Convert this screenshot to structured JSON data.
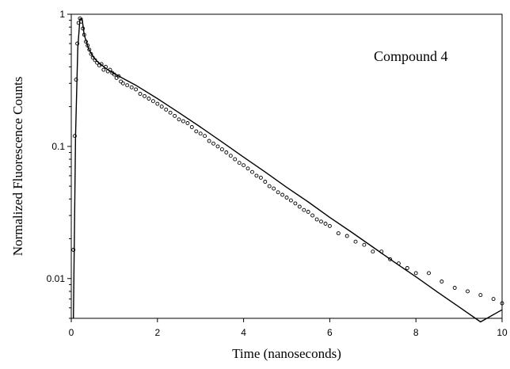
{
  "chart_data": {
    "type": "scatter",
    "title": "",
    "xlabel": "Time (nanoseconds)",
    "ylabel": "Normalized Fluorescence Counts",
    "annotation": "Compound 4",
    "xlim": [
      0,
      10
    ],
    "ylim": [
      0.005,
      1
    ],
    "yscale": "log",
    "grid": false,
    "legend": "none",
    "x_ticks": [
      0,
      2,
      4,
      6,
      8,
      10
    ],
    "x_tick_labels": [
      "0",
      "2",
      "4",
      "6",
      "8",
      "10"
    ],
    "y_ticks": [
      0.01,
      0.1,
      1
    ],
    "y_tick_labels": [
      "0.01",
      "0.1",
      "1"
    ],
    "series": [
      {
        "role": "measured-decay",
        "marker": "open-circle",
        "points": [
          [
            0.05,
            0.0165
          ],
          [
            0.08,
            0.12
          ],
          [
            0.11,
            0.32
          ],
          [
            0.14,
            0.6
          ],
          [
            0.17,
            0.86
          ],
          [
            0.2,
            0.93
          ],
          [
            0.23,
            0.88
          ],
          [
            0.27,
            0.78
          ],
          [
            0.3,
            0.7
          ],
          [
            0.34,
            0.62
          ],
          [
            0.38,
            0.58
          ],
          [
            0.42,
            0.54
          ],
          [
            0.46,
            0.5
          ],
          [
            0.5,
            0.47
          ],
          [
            0.55,
            0.45
          ],
          [
            0.6,
            0.43
          ],
          [
            0.65,
            0.41
          ],
          [
            0.7,
            0.42
          ],
          [
            0.75,
            0.38
          ],
          [
            0.8,
            0.4
          ],
          [
            0.85,
            0.37
          ],
          [
            0.9,
            0.38
          ],
          [
            0.95,
            0.36
          ],
          [
            1.0,
            0.35
          ],
          [
            1.05,
            0.33
          ],
          [
            1.1,
            0.34
          ],
          [
            1.15,
            0.31
          ],
          [
            1.2,
            0.3
          ],
          [
            1.3,
            0.29
          ],
          [
            1.4,
            0.28
          ],
          [
            1.5,
            0.27
          ],
          [
            1.6,
            0.25
          ],
          [
            1.7,
            0.24
          ],
          [
            1.8,
            0.23
          ],
          [
            1.9,
            0.22
          ],
          [
            2.0,
            0.21
          ],
          [
            2.1,
            0.2
          ],
          [
            2.2,
            0.19
          ],
          [
            2.3,
            0.18
          ],
          [
            2.4,
            0.17
          ],
          [
            2.5,
            0.16
          ],
          [
            2.6,
            0.155
          ],
          [
            2.7,
            0.15
          ],
          [
            2.8,
            0.14
          ],
          [
            2.9,
            0.13
          ],
          [
            3.0,
            0.125
          ],
          [
            3.1,
            0.12
          ],
          [
            3.2,
            0.11
          ],
          [
            3.3,
            0.105
          ],
          [
            3.4,
            0.1
          ],
          [
            3.5,
            0.095
          ],
          [
            3.6,
            0.09
          ],
          [
            3.7,
            0.085
          ],
          [
            3.8,
            0.08
          ],
          [
            3.9,
            0.075
          ],
          [
            4.0,
            0.072
          ],
          [
            4.1,
            0.068
          ],
          [
            4.2,
            0.064
          ],
          [
            4.3,
            0.06
          ],
          [
            4.4,
            0.058
          ],
          [
            4.5,
            0.054
          ],
          [
            4.6,
            0.05
          ],
          [
            4.7,
            0.048
          ],
          [
            4.8,
            0.045
          ],
          [
            4.9,
            0.043
          ],
          [
            5.0,
            0.041
          ],
          [
            5.1,
            0.039
          ],
          [
            5.2,
            0.037
          ],
          [
            5.3,
            0.035
          ],
          [
            5.4,
            0.033
          ],
          [
            5.5,
            0.032
          ],
          [
            5.6,
            0.03
          ],
          [
            5.7,
            0.028
          ],
          [
            5.8,
            0.027
          ],
          [
            5.9,
            0.026
          ],
          [
            6.0,
            0.025
          ],
          [
            6.2,
            0.022
          ],
          [
            6.4,
            0.021
          ],
          [
            6.6,
            0.019
          ],
          [
            6.8,
            0.018
          ],
          [
            7.0,
            0.016
          ],
          [
            7.2,
            0.016
          ],
          [
            7.4,
            0.014
          ],
          [
            7.6,
            0.013
          ],
          [
            7.8,
            0.012
          ],
          [
            8.0,
            0.011
          ],
          [
            8.3,
            0.011
          ],
          [
            8.6,
            0.0095
          ],
          [
            8.9,
            0.0085
          ],
          [
            9.2,
            0.008
          ],
          [
            9.5,
            0.0075
          ],
          [
            9.8,
            0.007
          ],
          [
            10.0,
            0.0065
          ]
        ]
      },
      {
        "role": "fit",
        "marker": "line",
        "points": [
          [
            0.05,
            0.005
          ],
          [
            0.1,
            0.12
          ],
          [
            0.15,
            0.55
          ],
          [
            0.2,
            0.92
          ],
          [
            0.25,
            0.93
          ],
          [
            0.3,
            0.7
          ],
          [
            0.4,
            0.55
          ],
          [
            0.5,
            0.48
          ],
          [
            0.6,
            0.44
          ],
          [
            0.8,
            0.39
          ],
          [
            1.0,
            0.355
          ],
          [
            1.5,
            0.29
          ],
          [
            2.0,
            0.23
          ],
          [
            2.5,
            0.18
          ],
          [
            3.0,
            0.14
          ],
          [
            3.5,
            0.108
          ],
          [
            4.0,
            0.083
          ],
          [
            4.5,
            0.064
          ],
          [
            5.0,
            0.049
          ],
          [
            5.5,
            0.038
          ],
          [
            6.0,
            0.029
          ],
          [
            6.5,
            0.0225
          ],
          [
            7.0,
            0.0173
          ],
          [
            7.5,
            0.0133
          ],
          [
            8.0,
            0.0103
          ],
          [
            8.5,
            0.0079
          ],
          [
            9.0,
            0.0061
          ],
          [
            9.5,
            0.0047
          ],
          [
            10.0,
            0.0058
          ]
        ]
      }
    ]
  }
}
